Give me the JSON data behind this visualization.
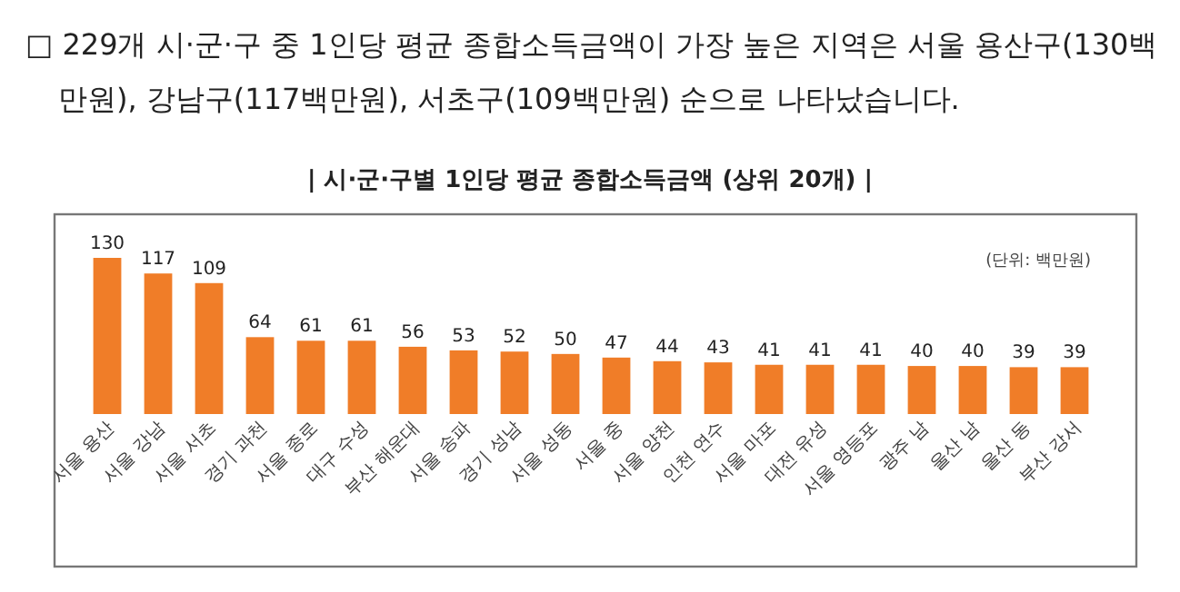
{
  "chart_data": {
    "type": "bar",
    "title": "| 시·군·구별 1인당 평균 종합소득금액 (상위 20개) |",
    "annotations": [
      "□ 229개 시·군·구 중 1인당 평균 종합소득금액이 가장 높은 지역은 서울 용산구(130백만원), 강남구(117백만원), 서초구(109백만원) 순으로 나타났습니다.",
      "(단위: 백만원)"
    ],
    "categories": [
      "서울 용산",
      "서울 강남",
      "서울 서초",
      "경기 과천",
      "서울 종로",
      "대구 수성",
      "부산 해운대",
      "서울 송파",
      "경기 성남",
      "서울 성동",
      "서울 중",
      "서울 양천",
      "인천 연수",
      "서울 마포",
      "대전 유성",
      "서울 영등포",
      "광주 남",
      "울산 남",
      "울산 동",
      "부산 강서"
    ],
    "values": [
      130,
      117,
      109,
      64,
      61,
      61,
      56,
      53,
      52,
      50,
      47,
      44,
      43,
      41,
      41,
      41,
      40,
      40,
      39,
      39
    ],
    "color": "#f07d28",
    "data_labels": true
  }
}
